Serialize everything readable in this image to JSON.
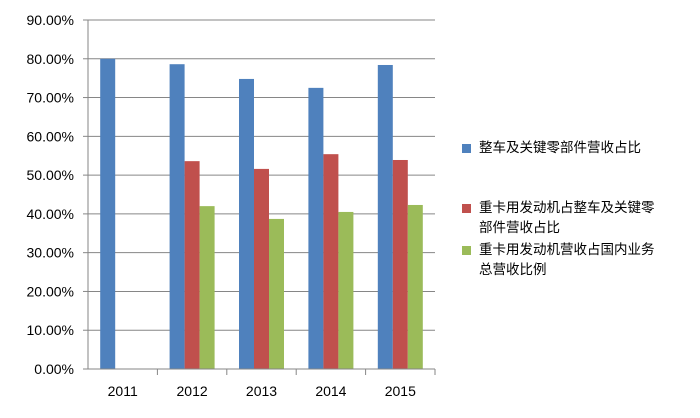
{
  "chart_data": {
    "type": "bar",
    "categories": [
      "2011",
      "2012",
      "2013",
      "2014",
      "2015"
    ],
    "series": [
      {
        "name": "整车及关键零部件营收占比",
        "color": "#4f81bd",
        "values": [
          80,
          78.6,
          74.8,
          72.5,
          78.4
        ]
      },
      {
        "name": "重卡用发动机占整车及关键零部件营收占比",
        "color": "#c0504d",
        "values": [
          null,
          53.6,
          51.6,
          55.4,
          53.9
        ]
      },
      {
        "name": "重卡用发动机营收占国内业务总营收比例",
        "color": "#9bbb59",
        "values": [
          null,
          42.0,
          38.7,
          40.5,
          42.3
        ]
      }
    ],
    "ylim": [
      0,
      90
    ],
    "yticks": [
      {
        "value": 0,
        "label": "0.00%"
      },
      {
        "value": 10,
        "label": "10.00%"
      },
      {
        "value": 20,
        "label": "20.00%"
      },
      {
        "value": 30,
        "label": "30.00%"
      },
      {
        "value": 40,
        "label": "40.00%"
      },
      {
        "value": 50,
        "label": "50.00%"
      },
      {
        "value": 60,
        "label": "60.00%"
      },
      {
        "value": 70,
        "label": "70.00%"
      },
      {
        "value": 80,
        "label": "80.00%"
      },
      {
        "value": 90,
        "label": "90.00%"
      }
    ],
    "grid": true,
    "legend": "right"
  }
}
